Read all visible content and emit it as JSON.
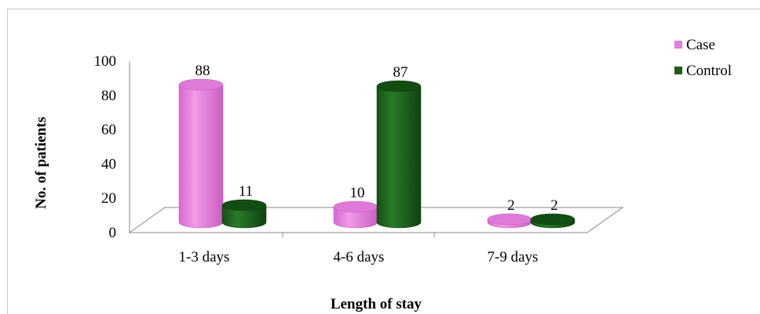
{
  "chart_data": {
    "type": "bar",
    "title": "",
    "xlabel": "Length of stay",
    "ylabel": "No. of patients",
    "categories": [
      "1-3 days",
      "4-6 days",
      "7-9 days"
    ],
    "series": [
      {
        "name": "Case",
        "values": [
          88,
          10,
          2
        ],
        "color": "#e87be0"
      },
      {
        "name": "Control",
        "values": [
          11,
          87,
          2
        ],
        "color": "#1a5e1a"
      }
    ],
    "ylim": [
      0,
      100
    ],
    "yticks": [
      "0",
      "20",
      "40",
      "60",
      "80",
      "100"
    ],
    "data_labels": true,
    "legend": "top-right",
    "grid": false,
    "style": "3d-cylinder"
  }
}
